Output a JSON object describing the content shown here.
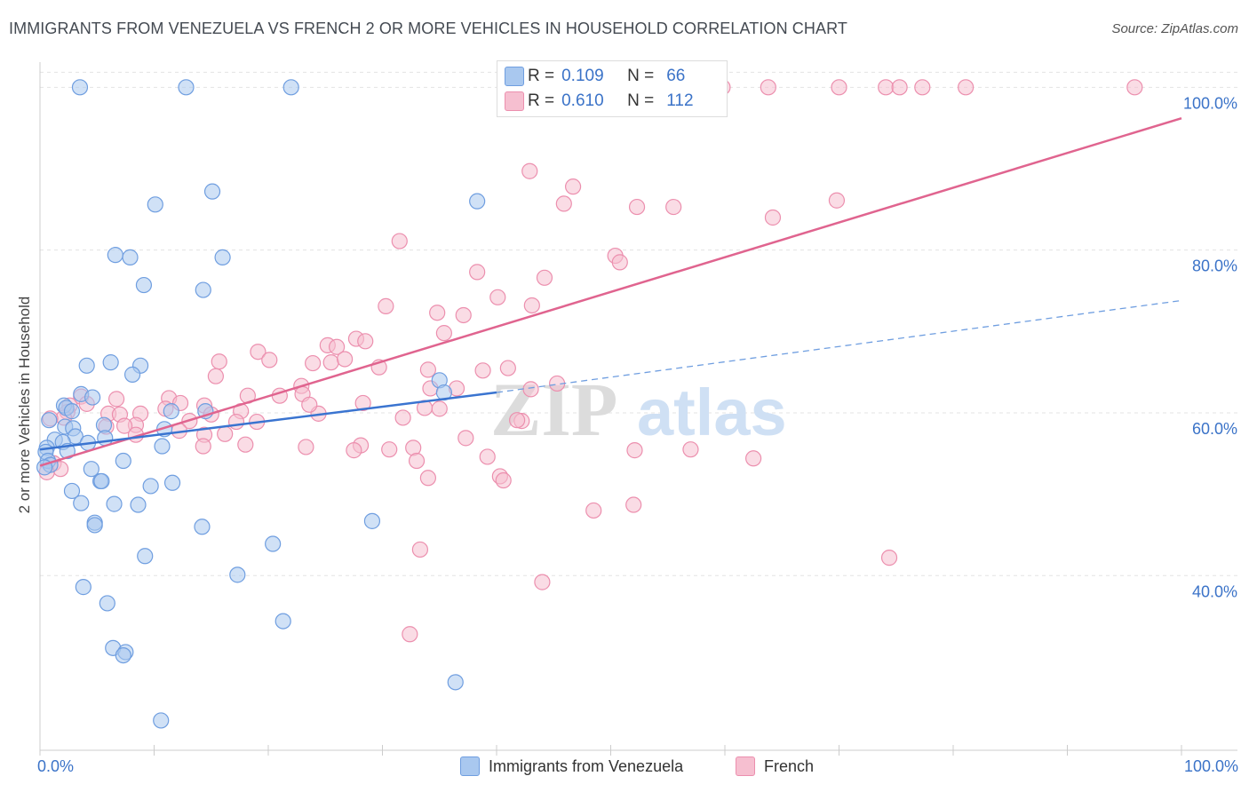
{
  "title": "IMMIGRANTS FROM VENEZUELA VS FRENCH 2 OR MORE VEHICLES IN HOUSEHOLD CORRELATION CHART",
  "source": "Source: ZipAtlas.com",
  "watermark": {
    "zip": "ZIP",
    "atlas": "atlas"
  },
  "legend_top": {
    "rows": [
      {
        "r_label": "R =",
        "r_value": "0.109",
        "n_label": "N =",
        "n_value": "66"
      },
      {
        "r_label": "R =",
        "r_value": "0.610",
        "n_label": "N =",
        "n_value": "112"
      }
    ]
  },
  "colors": {
    "blue_fill": "#a9c8ef",
    "blue_stroke": "#6f9ee0",
    "blue_line": "#3a74d0",
    "pink_fill": "#f6bfd0",
    "pink_stroke": "#ec8fae",
    "pink_line": "#e0648f",
    "axis_label": "#3b73c8",
    "grid": "#e3e3e3"
  },
  "chart_data": {
    "type": "scatter",
    "title": "IMMIGRANTS FROM VENEZUELA VS FRENCH 2 OR MORE VEHICLES IN HOUSEHOLD CORRELATION CHART",
    "xlabel": "",
    "ylabel": "2 or more Vehicles in Household",
    "x_tick_labels": [
      "0.0%",
      "100.0%"
    ],
    "y_tick_labels": [
      "40.0%",
      "60.0%",
      "80.0%",
      "100.0%"
    ],
    "y_ticks": [
      40,
      60,
      80,
      100
    ],
    "xlim": [
      0,
      100
    ],
    "ylim": [
      20.5,
      102
    ],
    "grid": true,
    "legend_position": "bottom",
    "series": [
      {
        "name": "Immigrants from Venezuela",
        "color": "#a9c8ef",
        "r": 0.109,
        "n": 66,
        "trend_solid": [
          [
            0,
            55.5
          ],
          [
            40,
            62.5
          ]
        ],
        "trend_dashed": [
          [
            40,
            62.5
          ],
          [
            100,
            73.8
          ]
        ],
        "points": [
          [
            12.8,
            100.0
          ],
          [
            22,
            100.0
          ],
          [
            3.5,
            100.0
          ],
          [
            10.1,
            85.6
          ],
          [
            15.1,
            87.2
          ],
          [
            38.3,
            86.0
          ],
          [
            6.6,
            79.4
          ],
          [
            7.9,
            79.1
          ],
          [
            16.0,
            79.1
          ],
          [
            9.1,
            75.7
          ],
          [
            14.3,
            75.1
          ],
          [
            6.2,
            66.2
          ],
          [
            4.1,
            65.8
          ],
          [
            8.8,
            65.8
          ],
          [
            8.1,
            64.7
          ],
          [
            35.0,
            64.0
          ],
          [
            35.4,
            62.5
          ],
          [
            3.6,
            62.3
          ],
          [
            2.1,
            60.9
          ],
          [
            2.3,
            60.6
          ],
          [
            11.5,
            60.2
          ],
          [
            14.5,
            60.2
          ],
          [
            2.8,
            60.2
          ],
          [
            0.8,
            59.1
          ],
          [
            5.6,
            58.5
          ],
          [
            10.9,
            58.0
          ],
          [
            2.2,
            58.3
          ],
          [
            2.9,
            58.1
          ],
          [
            3.1,
            57.1
          ],
          [
            5.7,
            56.9
          ],
          [
            1.3,
            56.7
          ],
          [
            2.0,
            56.4
          ],
          [
            4.2,
            56.3
          ],
          [
            10.7,
            55.9
          ],
          [
            0.6,
            55.7
          ],
          [
            2.4,
            55.3
          ],
          [
            0.5,
            55.2
          ],
          [
            0.7,
            54.1
          ],
          [
            7.3,
            54.1
          ],
          [
            0.9,
            53.6
          ],
          [
            0.4,
            53.3
          ],
          [
            4.5,
            53.1
          ],
          [
            5.3,
            51.6
          ],
          [
            5.4,
            51.6
          ],
          [
            11.6,
            51.4
          ],
          [
            9.7,
            51.0
          ],
          [
            2.8,
            50.4
          ],
          [
            3.6,
            48.9
          ],
          [
            6.5,
            48.8
          ],
          [
            8.6,
            48.7
          ],
          [
            4.8,
            46.5
          ],
          [
            4.8,
            46.2
          ],
          [
            14.2,
            46.0
          ],
          [
            29.1,
            46.7
          ],
          [
            20.4,
            43.9
          ],
          [
            9.2,
            42.4
          ],
          [
            3.8,
            38.6
          ],
          [
            17.3,
            40.1
          ],
          [
            5.9,
            36.6
          ],
          [
            21.3,
            34.4
          ],
          [
            6.4,
            31.1
          ],
          [
            7.5,
            30.6
          ],
          [
            7.3,
            30.2
          ],
          [
            36.4,
            26.9
          ],
          [
            10.6,
            22.2
          ],
          [
            4.6,
            61.9
          ]
        ]
      },
      {
        "name": "French",
        "color": "#f6bfd0",
        "r": 0.61,
        "n": 112,
        "trend": [
          [
            0,
            53.5
          ],
          [
            100,
            96.2
          ]
        ],
        "points": [
          [
            46.5,
            100.0
          ],
          [
            51.3,
            100.0
          ],
          [
            54.2,
            100.0
          ],
          [
            57.7,
            100.0
          ],
          [
            59.8,
            100.0
          ],
          [
            63.8,
            100.0
          ],
          [
            70,
            100.0
          ],
          [
            74.1,
            100.0
          ],
          [
            75.3,
            100.0
          ],
          [
            81.1,
            100.0
          ],
          [
            95.9,
            100.0
          ],
          [
            77.3,
            100.0
          ],
          [
            42.9,
            89.7
          ],
          [
            46.7,
            87.8
          ],
          [
            45.9,
            85.7
          ],
          [
            52.3,
            85.3
          ],
          [
            69.8,
            86.1
          ],
          [
            64.2,
            84.0
          ],
          [
            31.5,
            81.1
          ],
          [
            50.4,
            79.3
          ],
          [
            50.8,
            78.5
          ],
          [
            38.3,
            77.3
          ],
          [
            44.2,
            76.6
          ],
          [
            40.1,
            74.2
          ],
          [
            43.1,
            73.2
          ],
          [
            30.3,
            73.1
          ],
          [
            37.1,
            72.0
          ],
          [
            34.8,
            72.3
          ],
          [
            35.4,
            69.8
          ],
          [
            27.7,
            69.1
          ],
          [
            28.5,
            68.8
          ],
          [
            25.2,
            68.3
          ],
          [
            26.0,
            68.1
          ],
          [
            19.1,
            67.5
          ],
          [
            20.1,
            66.5
          ],
          [
            15.7,
            66.3
          ],
          [
            23.9,
            66.1
          ],
          [
            25.5,
            66.2
          ],
          [
            26.7,
            66.6
          ],
          [
            29.7,
            65.6
          ],
          [
            34.0,
            65.3
          ],
          [
            38.8,
            65.2
          ],
          [
            41.0,
            65.5
          ],
          [
            15.4,
            64.5
          ],
          [
            22.9,
            63.3
          ],
          [
            34.2,
            63.0
          ],
          [
            45.3,
            63.6
          ],
          [
            43.0,
            62.9
          ],
          [
            3.6,
            62.0
          ],
          [
            6.7,
            61.7
          ],
          [
            18.2,
            62.1
          ],
          [
            23.0,
            62.3
          ],
          [
            21.0,
            62.1
          ],
          [
            11.3,
            61.8
          ],
          [
            4.1,
            61.1
          ],
          [
            2.6,
            60.9
          ],
          [
            12.3,
            61.2
          ],
          [
            14.4,
            60.9
          ],
          [
            2.4,
            60.1
          ],
          [
            15.0,
            59.8
          ],
          [
            17.6,
            60.2
          ],
          [
            24.4,
            59.9
          ],
          [
            6.0,
            59.9
          ],
          [
            7.0,
            59.8
          ],
          [
            8.8,
            59.9
          ],
          [
            11.0,
            60.5
          ],
          [
            2.1,
            59.4
          ],
          [
            0.9,
            59.3
          ],
          [
            31.8,
            59.4
          ],
          [
            13.1,
            59.0
          ],
          [
            17.2,
            58.9
          ],
          [
            19.0,
            58.9
          ],
          [
            8.4,
            58.5
          ],
          [
            7.4,
            58.4
          ],
          [
            5.8,
            58.3
          ],
          [
            12.2,
            57.8
          ],
          [
            14.4,
            57.3
          ],
          [
            16.2,
            57.4
          ],
          [
            33.7,
            60.6
          ],
          [
            28.3,
            61.2
          ],
          [
            42.2,
            59.0
          ],
          [
            8.4,
            57.3
          ],
          [
            18.0,
            56.1
          ],
          [
            28.1,
            56.0
          ],
          [
            37.3,
            56.9
          ],
          [
            23.3,
            55.8
          ],
          [
            30.6,
            55.5
          ],
          [
            32.7,
            55.7
          ],
          [
            14.3,
            55.9
          ],
          [
            27.5,
            55.4
          ],
          [
            52.1,
            55.4
          ],
          [
            62.5,
            54.4
          ],
          [
            33.0,
            54.1
          ],
          [
            39.2,
            54.6
          ],
          [
            1.2,
            53.8
          ],
          [
            1.8,
            53.1
          ],
          [
            0.6,
            52.7
          ],
          [
            40.3,
            52.2
          ],
          [
            34.0,
            52.0
          ],
          [
            40.6,
            51.7
          ],
          [
            52.0,
            48.7
          ],
          [
            33.3,
            43.2
          ],
          [
            74.4,
            42.2
          ],
          [
            44.0,
            39.2
          ],
          [
            32.4,
            32.8
          ],
          [
            41.8,
            59.1
          ],
          [
            35.0,
            60.5
          ],
          [
            23.6,
            61.0
          ],
          [
            55.5,
            85.3
          ],
          [
            48.5,
            48.0
          ],
          [
            57.0,
            55.5
          ],
          [
            36.5,
            63.0
          ]
        ]
      }
    ]
  },
  "legend_bottom": [
    "Immigrants from Venezuela",
    "French"
  ]
}
